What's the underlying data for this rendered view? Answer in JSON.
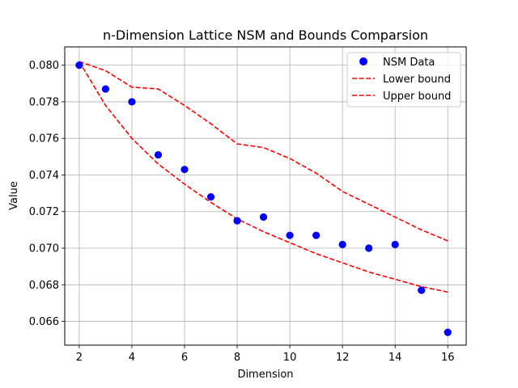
{
  "chart_data": {
    "type": "scatter",
    "title": "n-Dimension Lattice NSM and Bounds Comparsion",
    "xlabel": "Dimension",
    "ylabel": "Value",
    "xlim": [
      1.45,
      16.7
    ],
    "ylim": [
      0.0647,
      0.081
    ],
    "xticks": [
      2,
      4,
      6,
      8,
      10,
      12,
      14,
      16
    ],
    "yticks": [
      0.066,
      0.068,
      0.07,
      0.072,
      0.074,
      0.076,
      0.078,
      0.08
    ],
    "grid": true,
    "legend_position": "top-right",
    "series": [
      {
        "name": "NSM Data",
        "kind": "scatter",
        "color": "#0000ff",
        "x": [
          2,
          3,
          4,
          5,
          6,
          7,
          8,
          9,
          10,
          11,
          12,
          13,
          14,
          15,
          16
        ],
        "y": [
          0.08,
          0.0787,
          0.078,
          0.0751,
          0.0743,
          0.0728,
          0.0715,
          0.0717,
          0.0707,
          0.0707,
          0.0702,
          0.07,
          0.0702,
          0.0677,
          0.0654
        ]
      },
      {
        "name": "Lower bound",
        "kind": "line",
        "style": "dashed",
        "color": "#ff0000",
        "x": [
          2,
          3,
          4,
          5,
          6,
          7,
          8,
          9,
          10,
          11,
          12,
          13,
          14,
          15,
          16
        ],
        "y": [
          0.0802,
          0.0778,
          0.076,
          0.0746,
          0.0735,
          0.0725,
          0.0716,
          0.0709,
          0.0703,
          0.0697,
          0.0692,
          0.0687,
          0.0683,
          0.0679,
          0.0676
        ]
      },
      {
        "name": "Upper bound",
        "kind": "line",
        "style": "dashed",
        "color": "#ff0000",
        "x": [
          2,
          3,
          4,
          5,
          6,
          7,
          8,
          9,
          10,
          11,
          12,
          13,
          14,
          15,
          16
        ],
        "y": [
          0.0802,
          0.0797,
          0.0788,
          0.0787,
          0.0778,
          0.0768,
          0.0757,
          0.0755,
          0.0749,
          0.0741,
          0.0731,
          0.0724,
          0.0717,
          0.071,
          0.0704
        ]
      }
    ]
  }
}
